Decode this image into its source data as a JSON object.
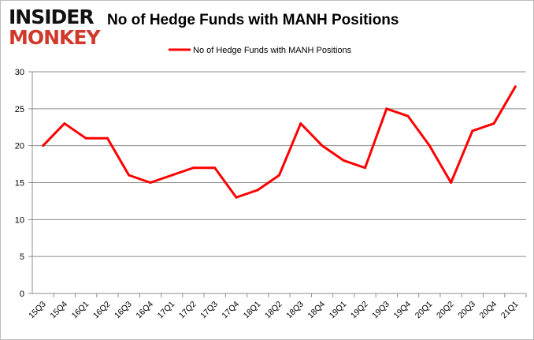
{
  "logo": {
    "line1": "INSIDER",
    "line2": "MONKEY"
  },
  "chart_data": {
    "type": "line",
    "title": "No of Hedge Funds with MANH Positions",
    "categories": [
      "15Q3",
      "15Q4",
      "16Q1",
      "16Q2",
      "16Q3",
      "16Q4",
      "17Q1",
      "17Q2",
      "17Q3",
      "17Q4",
      "18Q1",
      "18Q2",
      "18Q3",
      "18Q4",
      "19Q1",
      "19Q2",
      "19Q3",
      "19Q4",
      "20Q1",
      "20Q2",
      "20Q3",
      "20Q4",
      "21Q1"
    ],
    "series": [
      {
        "name": "No of Hedge Funds with MANH Positions",
        "color": "#ff0000",
        "values": [
          20,
          23,
          21,
          21,
          16,
          15,
          16,
          17,
          17,
          13,
          14,
          16,
          23,
          20,
          18,
          17,
          25,
          24,
          20,
          15,
          22,
          23,
          28
        ]
      }
    ],
    "ylim": [
      0,
      30
    ],
    "yticks": [
      0,
      5,
      10,
      15,
      20,
      25,
      30
    ],
    "grid": true,
    "legend": "top-center",
    "xlabel": "",
    "ylabel": ""
  }
}
